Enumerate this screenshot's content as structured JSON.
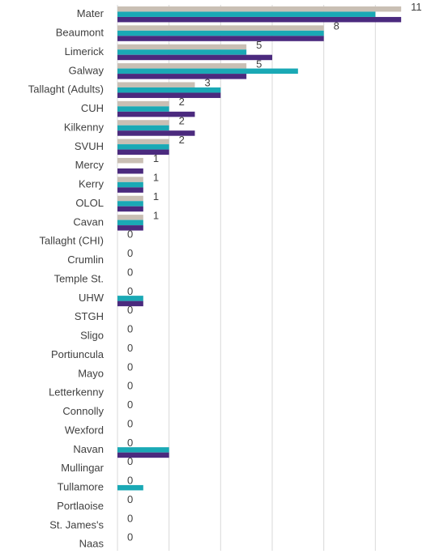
{
  "chart_data": {
    "type": "bar",
    "orientation": "horizontal",
    "categories": [
      "Mater",
      "Beaumont",
      "Limerick",
      "Galway",
      "Tallaght (Adults)",
      "CUH",
      "Kilkenny",
      "SVUH",
      "Mercy",
      "Kerry",
      "OLOL",
      "Cavan",
      "Tallaght (CHI)",
      "Crumlin",
      "Temple St.",
      "UHW",
      "STGH",
      "Sligo",
      "Portiuncula",
      "Mayo",
      "Letterkenny",
      "Connolly",
      "Wexford",
      "Navan",
      "Mullingar",
      "Tullamore",
      "Portlaoise",
      "St. James's",
      "Naas"
    ],
    "series": [
      {
        "color": "#c9bfb4",
        "values": [
          11,
          8,
          5,
          5,
          3,
          2,
          2,
          2,
          1,
          1,
          1,
          1,
          0,
          0,
          0,
          0,
          0,
          0,
          0,
          0,
          0,
          0,
          0,
          0,
          0,
          0,
          0,
          0,
          0
        ]
      },
      {
        "color": "#1aa9b5",
        "values": [
          10,
          8,
          5,
          7,
          4,
          2,
          2,
          2,
          0,
          1,
          1,
          1,
          0,
          0,
          0,
          1,
          0,
          0,
          0,
          0,
          0,
          0,
          0,
          2,
          0,
          1,
          0,
          0,
          0
        ]
      },
      {
        "color": "#4b2a7e",
        "values": [
          11,
          8,
          6,
          5,
          4,
          3,
          3,
          2,
          1,
          1,
          1,
          1,
          0,
          0,
          0,
          1,
          0,
          0,
          0,
          0,
          0,
          0,
          0,
          2,
          0,
          0,
          0,
          0,
          0
        ]
      }
    ],
    "xlim": [
      0,
      12
    ],
    "xticks": [
      0,
      2,
      4,
      6,
      8,
      10
    ],
    "grid": true
  }
}
